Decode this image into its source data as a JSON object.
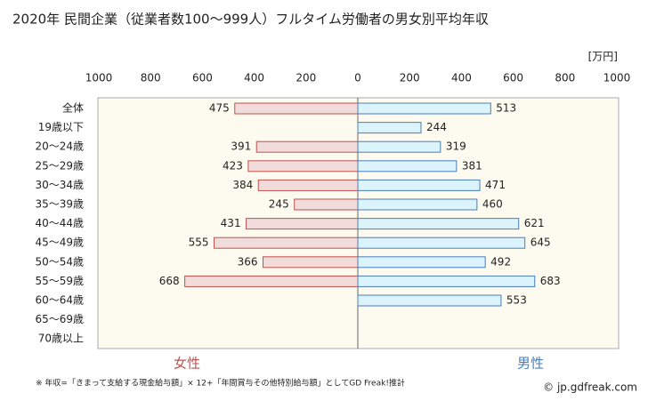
{
  "chart_data": {
    "type": "butterfly",
    "title": "2020年 民間企業（従業者数100〜999人）フルタイム労働者の男女別平均年収",
    "unit_label": "[万円]",
    "categories": [
      "全体",
      "19歳以下",
      "20〜24歳",
      "25〜29歳",
      "30〜34歳",
      "35〜39歳",
      "40〜44歳",
      "45〜49歳",
      "50〜54歳",
      "55〜59歳",
      "60〜64歳",
      "65〜69歳",
      "70歳以上"
    ],
    "xlim": [
      0,
      1000
    ],
    "series": [
      {
        "name": "女性",
        "side": "left",
        "color": "#c0504d",
        "fill": "#f2dcdb",
        "xticks": [
          1000,
          800,
          600,
          400,
          200,
          0
        ],
        "values": [
          475,
          null,
          391,
          423,
          384,
          245,
          431,
          555,
          366,
          668,
          null,
          null,
          null
        ]
      },
      {
        "name": "男性",
        "side": "right",
        "color": "#4a7ebb",
        "fill": "#dbf3fa",
        "xticks": [
          200,
          400,
          600,
          800,
          1000
        ],
        "values": [
          513,
          244,
          319,
          381,
          471,
          460,
          621,
          645,
          492,
          683,
          553,
          null,
          null
        ]
      }
    ],
    "footnote": "※ 年収=「きまって支給する現金給与額」× 12+「年間賞与その他特別給与額」としてGD Freak!推計",
    "source": "© jp.gdfreak.com"
  }
}
